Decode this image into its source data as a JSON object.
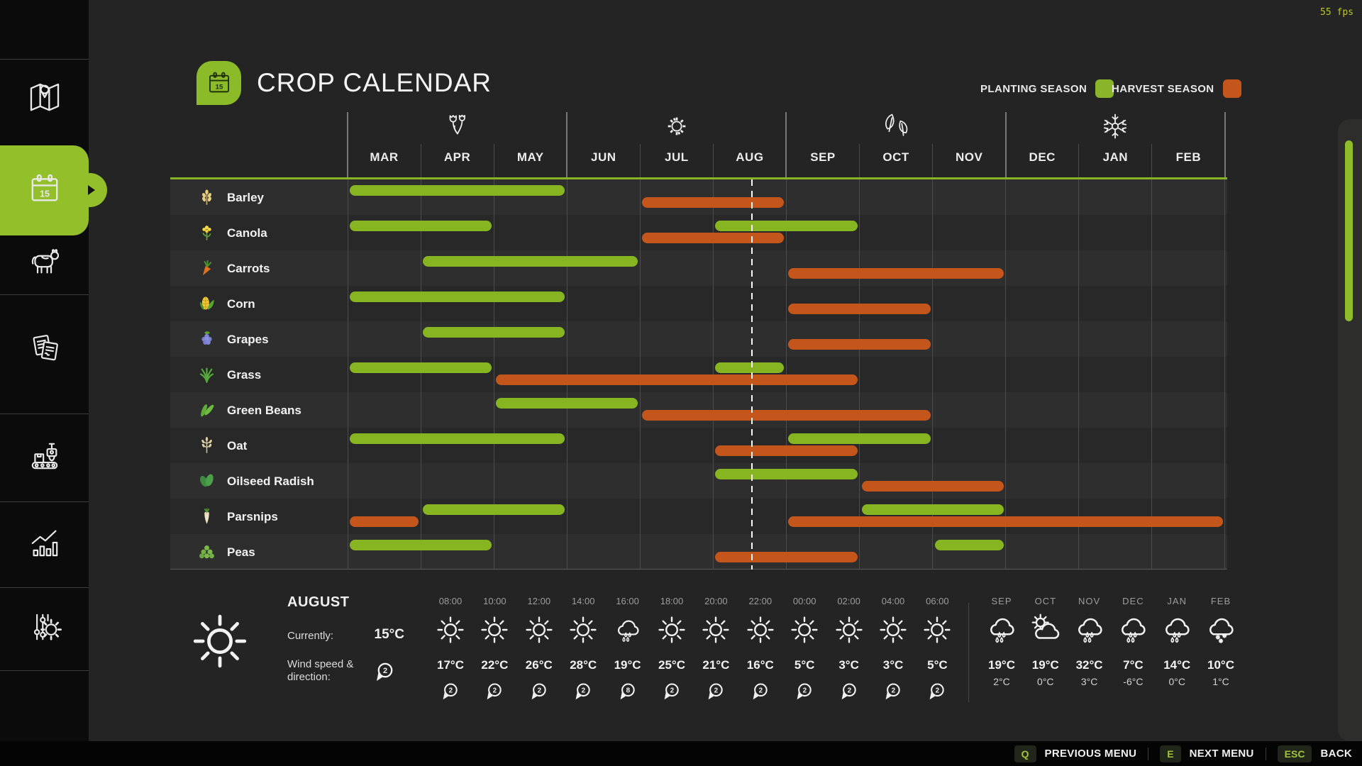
{
  "fps": "55 fps",
  "header": {
    "title": "CROP CALENDAR",
    "badge_day": "15"
  },
  "legend": [
    {
      "label": "PLANTING SEASON",
      "color": "#8ab52b"
    },
    {
      "label": "HARVEST SEASON",
      "color": "#c5561b"
    }
  ],
  "sidebar": {
    "items": [
      {
        "id": "map",
        "icon": "map-icon",
        "selected": false
      },
      {
        "id": "crop-calendar",
        "icon": "calendar-icon",
        "selected": true
      },
      {
        "id": "animals",
        "icon": "cow-icon",
        "selected": false
      },
      {
        "id": "contracts",
        "icon": "documents-icon",
        "selected": false
      },
      {
        "id": "production",
        "icon": "production-icon",
        "selected": false
      },
      {
        "id": "statistics",
        "icon": "statistics-icon",
        "selected": false
      },
      {
        "id": "settings",
        "icon": "sliders-gear-icon",
        "selected": false
      }
    ]
  },
  "chart_data": {
    "type": "gantt-calendar",
    "title": "CROP CALENDAR",
    "months": [
      "MAR",
      "APR",
      "MAY",
      "JUN",
      "JUL",
      "AUG",
      "SEP",
      "OCT",
      "NOV",
      "DEC",
      "JAN",
      "FEB"
    ],
    "seasons": [
      {
        "name": "spring",
        "icon": "flowers-icon"
      },
      {
        "name": "summer",
        "icon": "sun-icon"
      },
      {
        "name": "autumn",
        "icon": "leaves-icon"
      },
      {
        "name": "winter",
        "icon": "snowflake-icon"
      }
    ],
    "planting_color": "#87b522",
    "harvest_color": "#c5561b",
    "current": {
      "month": "AUG",
      "fraction": 0.52
    },
    "crops": [
      {
        "name": "Barley",
        "icon": "barley",
        "planting": [
          [
            "MAR",
            "MAY"
          ]
        ],
        "harvest": [
          [
            "JUL",
            "AUG"
          ]
        ]
      },
      {
        "name": "Canola",
        "icon": "canola",
        "planting": [
          [
            "MAR",
            "APR"
          ],
          [
            "AUG",
            "SEP"
          ]
        ],
        "harvest": [
          [
            "JUL",
            "AUG"
          ]
        ]
      },
      {
        "name": "Carrots",
        "icon": "carrot",
        "planting": [
          [
            "APR",
            "JUN"
          ]
        ],
        "harvest": [
          [
            "SEP",
            "NOV"
          ]
        ]
      },
      {
        "name": "Corn",
        "icon": "corn",
        "planting": [
          [
            "MAR",
            "MAY"
          ]
        ],
        "harvest": [
          [
            "SEP",
            "OCT"
          ]
        ]
      },
      {
        "name": "Grapes",
        "icon": "grapes",
        "planting": [
          [
            "APR",
            "MAY"
          ]
        ],
        "harvest": [
          [
            "SEP",
            "OCT"
          ]
        ]
      },
      {
        "name": "Grass",
        "icon": "grass",
        "planting": [
          [
            "MAR",
            "APR"
          ],
          [
            "AUG",
            "AUG"
          ]
        ],
        "harvest": [
          [
            "MAY",
            "SEP"
          ]
        ]
      },
      {
        "name": "Green Beans",
        "icon": "green-beans",
        "planting": [
          [
            "MAY",
            "JUN"
          ]
        ],
        "harvest": [
          [
            "JUL",
            "OCT"
          ]
        ]
      },
      {
        "name": "Oat",
        "icon": "oat",
        "planting": [
          [
            "MAR",
            "MAY"
          ],
          [
            "SEP",
            "OCT"
          ]
        ],
        "harvest": [
          [
            "AUG",
            "SEP"
          ]
        ]
      },
      {
        "name": "Oilseed Radish",
        "icon": "oilseed-radish",
        "planting": [
          [
            "AUG",
            "SEP"
          ]
        ],
        "harvest": [
          [
            "OCT",
            "NOV"
          ]
        ]
      },
      {
        "name": "Parsnips",
        "icon": "parsnip",
        "planting": [
          [
            "APR",
            "MAY"
          ],
          [
            "OCT",
            "NOV"
          ]
        ],
        "harvest": [
          [
            "MAR",
            "MAR"
          ],
          [
            "SEP",
            "FEB"
          ]
        ]
      },
      {
        "name": "Peas",
        "icon": "peas",
        "planting": [
          [
            "MAR",
            "APR"
          ],
          [
            "NOV",
            "NOV"
          ]
        ],
        "harvest": [
          [
            "AUG",
            "SEP"
          ]
        ]
      }
    ]
  },
  "weather": {
    "month": "AUGUST",
    "currently_label": "Currently:",
    "current_temp": "15°C",
    "wind_label_line1": "Wind speed &",
    "wind_label_line2": "direction:",
    "wind_value": "2",
    "hourly": [
      {
        "time": "08:00",
        "icon": "sun",
        "temp": "17°C",
        "wind": "2"
      },
      {
        "time": "10:00",
        "icon": "sun",
        "temp": "22°C",
        "wind": "2"
      },
      {
        "time": "12:00",
        "icon": "sun",
        "temp": "26°C",
        "wind": "2"
      },
      {
        "time": "14:00",
        "icon": "sun",
        "temp": "28°C",
        "wind": "2"
      },
      {
        "time": "16:00",
        "icon": "rain",
        "temp": "19°C",
        "wind": "8"
      },
      {
        "time": "18:00",
        "icon": "sun",
        "temp": "25°C",
        "wind": "2"
      },
      {
        "time": "20:00",
        "icon": "sun",
        "temp": "21°C",
        "wind": "2"
      },
      {
        "time": "22:00",
        "icon": "sun",
        "temp": "16°C",
        "wind": "2"
      },
      {
        "time": "00:00",
        "icon": "sun",
        "temp": "5°C",
        "wind": "2"
      },
      {
        "time": "02:00",
        "icon": "sun",
        "temp": "3°C",
        "wind": "2"
      },
      {
        "time": "04:00",
        "icon": "sun",
        "temp": "3°C",
        "wind": "2"
      },
      {
        "time": "06:00",
        "icon": "sun",
        "temp": "5°C",
        "wind": "2"
      }
    ],
    "monthly": [
      {
        "month": "SEP",
        "icon": "rain",
        "high": "19°C",
        "low": "2°C"
      },
      {
        "month": "OCT",
        "icon": "cloud-sun",
        "high": "19°C",
        "low": "0°C"
      },
      {
        "month": "NOV",
        "icon": "rain",
        "high": "32°C",
        "low": "3°C"
      },
      {
        "month": "DEC",
        "icon": "rain",
        "high": "7°C",
        "low": "-6°C"
      },
      {
        "month": "JAN",
        "icon": "rain",
        "high": "14°C",
        "low": "0°C"
      },
      {
        "month": "FEB",
        "icon": "snow",
        "high": "10°C",
        "low": "1°C"
      }
    ]
  },
  "menu_bar": {
    "items": [
      {
        "key": "Q",
        "label": "PREVIOUS MENU"
      },
      {
        "key": "E",
        "label": "NEXT MENU"
      },
      {
        "key": "ESC",
        "label": "BACK"
      }
    ]
  }
}
